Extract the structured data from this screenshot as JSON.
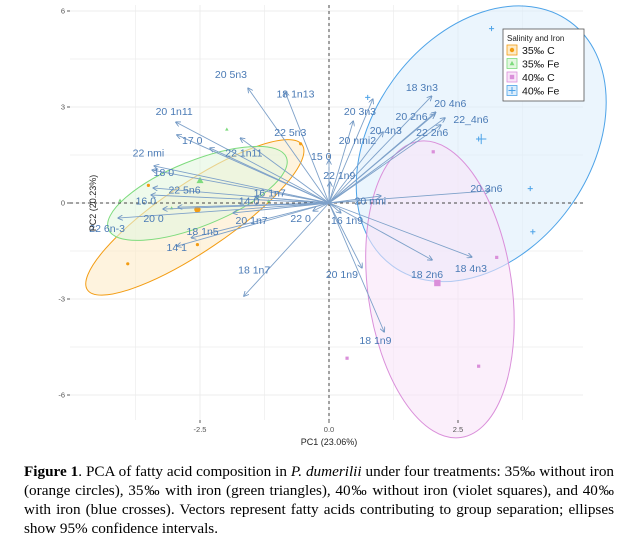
{
  "chart_data": {
    "type": "scatter",
    "subtype": "pca-biplot",
    "xlabel": "PC1 (23.06%)",
    "ylabel": "PC2 (20.23%)",
    "xlim": [
      -5.1,
      4.9
    ],
    "ylim": [
      -6.5,
      6.2
    ],
    "x_ticks": [
      -2.5,
      0.0,
      2.5
    ],
    "x_tick_labels": [
      "-2.5",
      "0.0",
      "2.5"
    ],
    "y_ticks": [
      -6,
      -3,
      0,
      3,
      6
    ],
    "y_tick_labels": [
      "-6",
      "-3",
      "0",
      "3",
      "6"
    ],
    "grid": true,
    "reference_lines": {
      "x": 0,
      "y": 0,
      "style": "dashed"
    },
    "legend": {
      "title": "Salinity and Iron",
      "position": "top-right",
      "entries": [
        {
          "label": "35‰ C",
          "shape": "circle",
          "color": "#F39C12",
          "fill": "#FDEBC8"
        },
        {
          "label": "35‰ Fe",
          "shape": "triangle",
          "color": "#7DDB7D",
          "fill": "#E3F7E0"
        },
        {
          "label": "40‰ C",
          "shape": "square",
          "color": "#DA8FDA",
          "fill": "#F8E5F8"
        },
        {
          "label": "40‰ Fe",
          "shape": "cross",
          "color": "#4DA3E8",
          "fill": "#DDEEFC"
        }
      ]
    },
    "groups": [
      {
        "name": "35‰ C",
        "points": [
          [
            -3.5,
            0.55
          ],
          [
            -2.55,
            -1.3
          ],
          [
            -3.9,
            -1.9
          ],
          [
            -0.55,
            1.85
          ]
        ],
        "centroid": [
          -2.55,
          -0.2
        ],
        "ellipse": {
          "center": [
            -2.6,
            -0.45
          ],
          "rx": 4.05,
          "ry": 1.25,
          "angle_deg": 34
        }
      },
      {
        "name": "35‰ Fe",
        "points": [
          [
            -1.98,
            2.3
          ],
          [
            -4.05,
            0.08
          ],
          [
            -3.05,
            -0.16
          ],
          [
            -1.17,
            0.06
          ]
        ],
        "centroid": [
          -2.5,
          0.7
        ],
        "ellipse": {
          "center": [
            -2.55,
            0.3
          ],
          "rx": 3.0,
          "ry": 1.2,
          "angle_deg": 22
        }
      },
      {
        "name": "40‰ C",
        "points": [
          [
            2.02,
            1.6
          ],
          [
            3.25,
            -1.7
          ],
          [
            0.35,
            -4.85
          ],
          [
            2.9,
            -5.1
          ]
        ],
        "centroid": [
          2.1,
          -2.5
        ],
        "ellipse": {
          "center": [
            2.15,
            -2.7
          ],
          "rx": 2.25,
          "ry": 5.5,
          "angle_deg": 8
        }
      },
      {
        "name": "40‰ Fe",
        "points": [
          [
            0.75,
            3.3
          ],
          [
            3.15,
            5.45
          ],
          [
            2.9,
            2.0
          ],
          [
            3.9,
            0.45
          ],
          [
            3.95,
            -0.9
          ]
        ],
        "centroid": [
          2.95,
          2.0
        ],
        "ellipse": {
          "center": [
            2.95,
            1.85
          ],
          "rx": 3.4,
          "ry": 5.55,
          "angle_deg": -36
        }
      }
    ],
    "vectors": [
      {
        "label": "20 5n3",
        "x": -1.57,
        "y": 3.59,
        "lx": -1.9,
        "ly": 3.9
      },
      {
        "label": "18 1n13",
        "x": -0.85,
        "y": 3.47,
        "lx": -0.65,
        "ly": 3.3
      },
      {
        "label": "20 1n11",
        "x": -2.97,
        "y": 2.53,
        "lx": -3.0,
        "ly": 2.75
      },
      {
        "label": "17 0",
        "x": -2.95,
        "y": 2.13,
        "lx": -2.65,
        "ly": 1.85
      },
      {
        "label": "22 nmi",
        "x": -3.39,
        "y": 1.16,
        "lx": -3.5,
        "ly": 1.45
      },
      {
        "label": "18 0",
        "x": -3.43,
        "y": 1.03,
        "lx": -3.2,
        "ly": 0.85
      },
      {
        "label": "22 5n6",
        "x": -3.41,
        "y": 0.47,
        "lx": -2.8,
        "ly": 0.3
      },
      {
        "label": "16 0",
        "x": -3.45,
        "y": 0.25,
        "lx": -3.55,
        "ly": -0.05
      },
      {
        "label": "20 0",
        "x": -3.22,
        "y": -0.19,
        "lx": -3.4,
        "ly": -0.6
      },
      {
        "label": "22 6n-3",
        "x": -4.09,
        "y": -0.47,
        "lx": -4.3,
        "ly": -0.9
      },
      {
        "label": "14 0",
        "x": -2.93,
        "y": -0.13,
        "lx": -1.55,
        "ly": -0.05
      },
      {
        "label": "20 1n7",
        "x": -1.86,
        "y": -0.31,
        "lx": -1.5,
        "ly": -0.65
      },
      {
        "label": "18 1n5",
        "x": -2.67,
        "y": -1.09,
        "lx": -2.45,
        "ly": -1.0
      },
      {
        "label": "14 1",
        "x": -2.95,
        "y": -1.35,
        "lx": -2.95,
        "ly": -1.5
      },
      {
        "label": "16 1n7",
        "x": -1.43,
        "y": 0.19,
        "lx": -1.15,
        "ly": 0.2
      },
      {
        "label": "22 0",
        "x": -0.31,
        "y": -0.25,
        "lx": -0.55,
        "ly": -0.6
      },
      {
        "label": "22 1n11",
        "x": -2.31,
        "y": 1.72,
        "lx": -1.65,
        "ly": 1.45
      },
      {
        "label": "22 5n3",
        "x": -1.72,
        "y": 2.03,
        "lx": -0.75,
        "ly": 2.1
      },
      {
        "label": "18 1n7",
        "x": -1.65,
        "y": -2.91,
        "lx": -1.45,
        "ly": -2.2
      },
      {
        "label": "15 0",
        "x": 0.0,
        "y": 1.34,
        "lx": -0.15,
        "ly": 1.35
      },
      {
        "label": "22 1n9",
        "x": 0.02,
        "y": 0.66,
        "lx": 0.2,
        "ly": 0.75
      },
      {
        "label": "20 nmi2",
        "x": 0.47,
        "y": 2.56,
        "lx": 0.55,
        "ly": 1.85
      },
      {
        "label": "20 3n3",
        "x": 0.85,
        "y": 3.25,
        "lx": 0.6,
        "ly": 2.75
      },
      {
        "label": "20 4n3",
        "x": 1.05,
        "y": 2.22,
        "lx": 1.1,
        "ly": 2.15
      },
      {
        "label": "20 2n6",
        "x": 2.05,
        "y": 2.78,
        "lx": 1.6,
        "ly": 2.6
      },
      {
        "label": "18 3n3",
        "x": 1.99,
        "y": 3.34,
        "lx": 1.8,
        "ly": 3.5
      },
      {
        "label": "20 4n6",
        "x": 2.07,
        "y": 2.84,
        "lx": 2.35,
        "ly": 3.0
      },
      {
        "label": "22_4n6",
        "x": 2.25,
        "y": 2.66,
        "lx": 2.75,
        "ly": 2.5
      },
      {
        "label": "22 2n6",
        "x": 2.17,
        "y": 2.44,
        "lx": 2.0,
        "ly": 2.1
      },
      {
        "label": "20 3n6",
        "x": 3.12,
        "y": 0.38,
        "lx": 3.05,
        "ly": 0.35
      },
      {
        "label": "20 nmi",
        "x": 1.01,
        "y": 0.22,
        "lx": 0.8,
        "ly": -0.05
      },
      {
        "label": "16 1n9",
        "x": 0.23,
        "y": -0.31,
        "lx": 0.35,
        "ly": -0.65
      },
      {
        "label": "20 1n9",
        "x": 0.64,
        "y": -2.03,
        "lx": 0.25,
        "ly": -2.35
      },
      {
        "label": "18 2n6",
        "x": 2.0,
        "y": -1.78,
        "lx": 1.9,
        "ly": -2.35
      },
      {
        "label": "18 4n3",
        "x": 2.77,
        "y": -1.69,
        "lx": 2.75,
        "ly": -2.15
      },
      {
        "label": "18 1n9",
        "x": 1.07,
        "y": -4.03,
        "lx": 0.9,
        "ly": -4.4
      }
    ]
  },
  "caption": {
    "figure_label": "Figure 1",
    "text_before_italic": ". PCA of fatty acid composition in ",
    "species": "P. dumerilii",
    "text_after_italic": " under four treatments: 35‰ without iron (orange circles), 35‰ with iron (green triangles), 40‰ without iron (violet squares), and 40‰ with iron (blue crosses). Vectors represent fatty acids contributing to group separation; ellipses show 95% confidence intervals."
  }
}
